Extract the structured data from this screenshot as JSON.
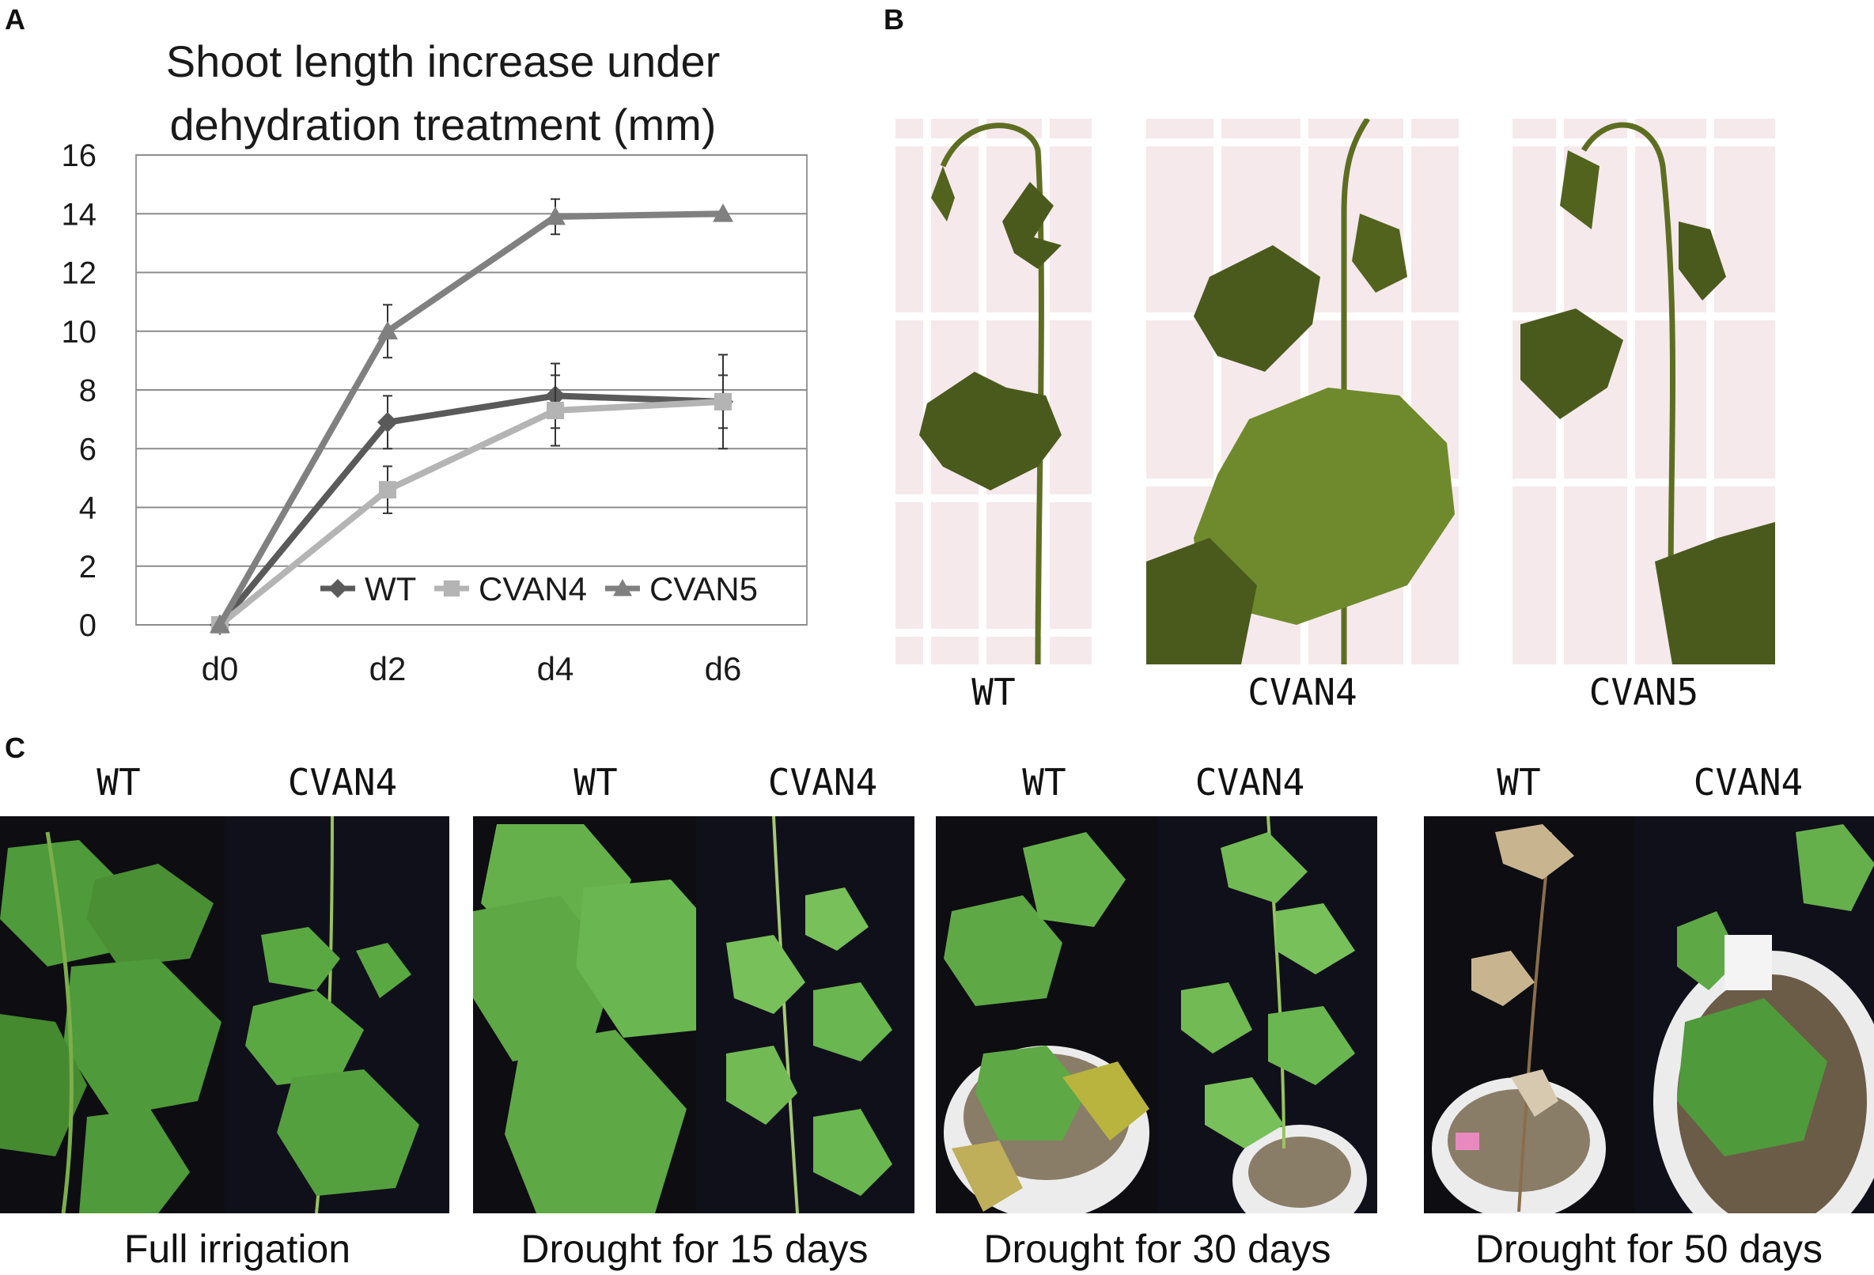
{
  "panel_labels": {
    "a": "A",
    "b": "B",
    "c": "C"
  },
  "chart_data": {
    "type": "line",
    "title": "Shoot length increase under dehydration treatment (mm)",
    "title_lines": [
      "Shoot length increase under",
      "dehydration treatment (mm)"
    ],
    "categories": [
      "d0",
      "d2",
      "d4",
      "d6"
    ],
    "ylim": [
      0,
      16
    ],
    "yticks": [
      "0",
      "2",
      "4",
      "6",
      "8",
      "10",
      "12",
      "14",
      "16"
    ],
    "grid": true,
    "legend_position": "bottom-right",
    "series": [
      {
        "name": "WT",
        "marker": "diamond",
        "color": "#5a5a5a",
        "values": [
          0,
          6.9,
          7.8,
          7.6
        ],
        "errors": [
          0,
          0.9,
          1.1,
          1.6
        ]
      },
      {
        "name": "CVAN4",
        "marker": "square",
        "color": "#b4b4b4",
        "values": [
          0,
          4.6,
          7.3,
          7.6
        ],
        "errors": [
          0,
          0.8,
          1.2,
          0.9
        ]
      },
      {
        "name": "CVAN5",
        "marker": "triangle",
        "color": "#808080",
        "values": [
          0,
          10.0,
          13.9,
          14.0
        ],
        "errors": [
          0,
          0.9,
          0.6,
          0
        ]
      }
    ]
  },
  "panel_b": {
    "labels": [
      "WT",
      "CVAN4",
      "CVAN5"
    ]
  },
  "panel_c": {
    "groups": [
      {
        "wt": "WT",
        "cvan": "CVAN4",
        "condition": "Full irrigation"
      },
      {
        "wt": "WT",
        "cvan": "CVAN4",
        "condition": "Drought for 15 days"
      },
      {
        "wt": "WT",
        "cvan": "CVAN4",
        "condition": "Drought for 30 days"
      },
      {
        "wt": "WT",
        "cvan": "CVAN4",
        "condition": "Drought for 50 days"
      }
    ]
  },
  "colors": {
    "b_background": "#f5e9ec",
    "b_grid": "#ffffff",
    "plant_dark": "#4a5a1c",
    "plant_mid": "#6f8a2c",
    "c_background": "#0d0d12",
    "leaf_green": "#4f9a3a",
    "leaf_light": "#8cc46a",
    "pot": "#ececec",
    "dead_leaf": "#c8b590"
  }
}
